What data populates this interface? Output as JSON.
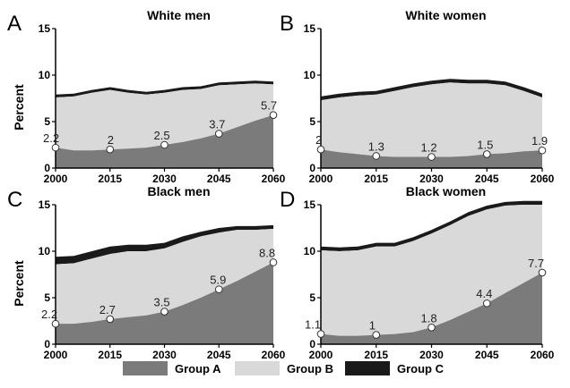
{
  "chart_data": [
    {
      "type": "area",
      "letter": "A",
      "title": "White men",
      "ylabel": "Percent",
      "ylim": [
        0,
        15
      ],
      "yticks": [
        "0",
        "5",
        "10",
        "15"
      ],
      "xticks": [
        "2000",
        "2015",
        "2030",
        "2045",
        "2060"
      ],
      "x": [
        2000,
        2005,
        2010,
        2015,
        2020,
        2025,
        2030,
        2035,
        2040,
        2045,
        2050,
        2055,
        2060
      ],
      "series": [
        {
          "name": "Group A",
          "values": [
            2.2,
            1.9,
            1.9,
            2.0,
            2.1,
            2.2,
            2.5,
            2.8,
            3.2,
            3.7,
            4.4,
            5.1,
            5.7
          ]
        },
        {
          "name": "Group B",
          "values": [
            5.4,
            5.8,
            6.2,
            6.4,
            6.0,
            5.7,
            5.6,
            5.6,
            5.3,
            5.2,
            4.6,
            4.0,
            3.3
          ]
        },
        {
          "name": "Group C",
          "values": [
            0.3,
            0.3,
            0.3,
            0.3,
            0.3,
            0.3,
            0.3,
            0.3,
            0.3,
            0.3,
            0.3,
            0.3,
            0.3
          ]
        }
      ],
      "markers": [
        {
          "x": 2000,
          "y": 2.2,
          "label": "2.2"
        },
        {
          "x": 2015,
          "y": 2.0,
          "label": "2"
        },
        {
          "x": 2030,
          "y": 2.5,
          "label": "2.5"
        },
        {
          "x": 2045,
          "y": 3.7,
          "label": "3.7"
        },
        {
          "x": 2060,
          "y": 5.7,
          "label": "5.7"
        }
      ]
    },
    {
      "type": "area",
      "letter": "B",
      "title": "White women",
      "ylabel": "",
      "ylim": [
        0,
        15
      ],
      "yticks": [
        "0",
        "5",
        "10",
        "15"
      ],
      "xticks": [
        "2000",
        "2015",
        "2030",
        "2045",
        "2060"
      ],
      "x": [
        2000,
        2005,
        2010,
        2015,
        2020,
        2025,
        2030,
        2035,
        2040,
        2045,
        2050,
        2055,
        2060
      ],
      "series": [
        {
          "name": "Group A",
          "values": [
            2.0,
            1.7,
            1.5,
            1.3,
            1.2,
            1.2,
            1.2,
            1.2,
            1.3,
            1.5,
            1.6,
            1.8,
            1.9
          ]
        },
        {
          "name": "Group B",
          "values": [
            5.3,
            5.9,
            6.3,
            6.6,
            7.1,
            7.5,
            7.8,
            8.0,
            7.8,
            7.6,
            7.3,
            6.5,
            5.7
          ]
        },
        {
          "name": "Group C",
          "values": [
            0.4,
            0.4,
            0.4,
            0.4,
            0.4,
            0.4,
            0.4,
            0.4,
            0.4,
            0.4,
            0.4,
            0.4,
            0.4
          ]
        }
      ],
      "markers": [
        {
          "x": 2000,
          "y": 2.0,
          "label": "2"
        },
        {
          "x": 2015,
          "y": 1.3,
          "label": "1.3"
        },
        {
          "x": 2030,
          "y": 1.2,
          "label": "1.2"
        },
        {
          "x": 2045,
          "y": 1.5,
          "label": "1.5"
        },
        {
          "x": 2060,
          "y": 1.9,
          "label": "1.9"
        }
      ]
    },
    {
      "type": "area",
      "letter": "C",
      "title": "Black men",
      "ylabel": "Percent",
      "ylim": [
        0,
        15
      ],
      "yticks": [
        "0",
        "5",
        "10",
        "15"
      ],
      "xticks": [
        "2000",
        "2015",
        "2030",
        "2045",
        "2060"
      ],
      "x": [
        2000,
        2005,
        2010,
        2015,
        2020,
        2025,
        2030,
        2035,
        2040,
        2045,
        2050,
        2055,
        2060
      ],
      "series": [
        {
          "name": "Group A",
          "values": [
            2.2,
            2.2,
            2.4,
            2.7,
            2.9,
            3.1,
            3.5,
            4.2,
            5.0,
            5.9,
            6.8,
            7.8,
            8.8
          ]
        },
        {
          "name": "Group B",
          "values": [
            6.4,
            6.5,
            6.8,
            7.0,
            7.1,
            6.9,
            6.8,
            6.8,
            6.6,
            6.1,
            5.5,
            4.5,
            3.6
          ]
        },
        {
          "name": "Group C",
          "values": [
            0.8,
            0.8,
            0.8,
            0.8,
            0.7,
            0.7,
            0.6,
            0.6,
            0.5,
            0.5,
            0.4,
            0.4,
            0.4
          ]
        }
      ],
      "markers": [
        {
          "x": 2000,
          "y": 2.2,
          "label": "2.2"
        },
        {
          "x": 2015,
          "y": 2.7,
          "label": "2.7"
        },
        {
          "x": 2030,
          "y": 3.5,
          "label": "3.5"
        },
        {
          "x": 2045,
          "y": 5.9,
          "label": "5.9"
        },
        {
          "x": 2060,
          "y": 8.8,
          "label": "8.8"
        }
      ]
    },
    {
      "type": "area",
      "letter": "D",
      "title": "Black women",
      "ylabel": "",
      "ylim": [
        0,
        15
      ],
      "yticks": [
        "0",
        "5",
        "10",
        "15"
      ],
      "xticks": [
        "2000",
        "2015",
        "2030",
        "2045",
        "2060"
      ],
      "x": [
        2000,
        2005,
        2010,
        2015,
        2020,
        2025,
        2030,
        2035,
        2040,
        2045,
        2050,
        2055,
        2060
      ],
      "series": [
        {
          "name": "Group A",
          "values": [
            1.1,
            0.9,
            0.9,
            1.0,
            1.1,
            1.3,
            1.8,
            2.6,
            3.5,
            4.4,
            5.5,
            6.6,
            7.7
          ]
        },
        {
          "name": "Group B",
          "values": [
            9.0,
            9.1,
            9.2,
            9.5,
            9.4,
            9.8,
            10.1,
            10.2,
            10.3,
            10.1,
            9.4,
            8.4,
            7.3
          ]
        },
        {
          "name": "Group C",
          "values": [
            0.4,
            0.4,
            0.4,
            0.4,
            0.4,
            0.4,
            0.4,
            0.4,
            0.4,
            0.4,
            0.4,
            0.4,
            0.4
          ]
        }
      ],
      "markers": [
        {
          "x": 2000,
          "y": 1.1,
          "label": "1.1"
        },
        {
          "x": 2015,
          "y": 1.0,
          "label": "1"
        },
        {
          "x": 2030,
          "y": 1.8,
          "label": "1.8"
        },
        {
          "x": 2045,
          "y": 4.4,
          "label": "4.4"
        },
        {
          "x": 2060,
          "y": 7.7,
          "label": "7.7"
        }
      ]
    }
  ],
  "legend": {
    "placement": "bottom",
    "items": [
      {
        "name": "Group A",
        "color": "#7b7b7b"
      },
      {
        "name": "Group B",
        "color": "#d9d9d9"
      },
      {
        "name": "Group C",
        "color": "#1a1a1a"
      }
    ]
  },
  "colors": {
    "group_a": "#7b7b7b",
    "group_b": "#d9d9d9",
    "group_c": "#1a1a1a",
    "marker_fill": "#ffffff",
    "marker_stroke": "#333333"
  }
}
